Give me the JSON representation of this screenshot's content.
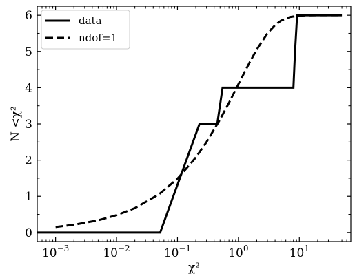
{
  "chart_data": {
    "type": "line",
    "title": "",
    "xlabel": "χ²",
    "ylabel": "N <χ²",
    "xscale": "log",
    "xlim": [
      0.0005,
      70
    ],
    "ylim": [
      -0.25,
      6.25
    ],
    "grid": false,
    "legend": "top-left",
    "x_ticks": [
      {
        "value": 0.001,
        "base": "10",
        "exp": "−3"
      },
      {
        "value": 0.01,
        "base": "10",
        "exp": "−2"
      },
      {
        "value": 0.1,
        "base": "10",
        "exp": "−1"
      },
      {
        "value": 1,
        "base": "10",
        "exp": "0"
      },
      {
        "value": 10,
        "base": "10",
        "exp": "1"
      }
    ],
    "y_ticks": [
      {
        "value": 0,
        "label": "0"
      },
      {
        "value": 1,
        "label": "1"
      },
      {
        "value": 2,
        "label": "2"
      },
      {
        "value": 3,
        "label": "3"
      },
      {
        "value": 4,
        "label": "4"
      },
      {
        "value": 5,
        "label": "5"
      },
      {
        "value": 6,
        "label": "6"
      }
    ],
    "series": [
      {
        "name": "data",
        "style": "solid",
        "color": "#000000",
        "x": [
          0.0005,
          0.052,
          0.23,
          0.45,
          0.55,
          8.0,
          8.5,
          9.2,
          50
        ],
        "y": [
          0,
          0,
          3,
          3,
          4,
          4,
          5,
          6,
          6
        ]
      },
      {
        "name": "ndof=1",
        "style": "dashed",
        "color": "#000000",
        "x": [
          0.001,
          0.002,
          0.005,
          0.01,
          0.02,
          0.05,
          0.1,
          0.2,
          0.3,
          0.5,
          0.7,
          1,
          1.5,
          2,
          3,
          4,
          5,
          7,
          10,
          15,
          20,
          30,
          50
        ],
        "y": [
          0.151,
          0.214,
          0.338,
          0.477,
          0.673,
          1.059,
          1.486,
          2.073,
          2.5,
          3.124,
          3.582,
          4.096,
          4.671,
          5.053,
          5.501,
          5.728,
          5.85,
          5.951,
          5.991,
          5.999,
          6.0,
          6.0,
          6.0
        ]
      }
    ]
  }
}
